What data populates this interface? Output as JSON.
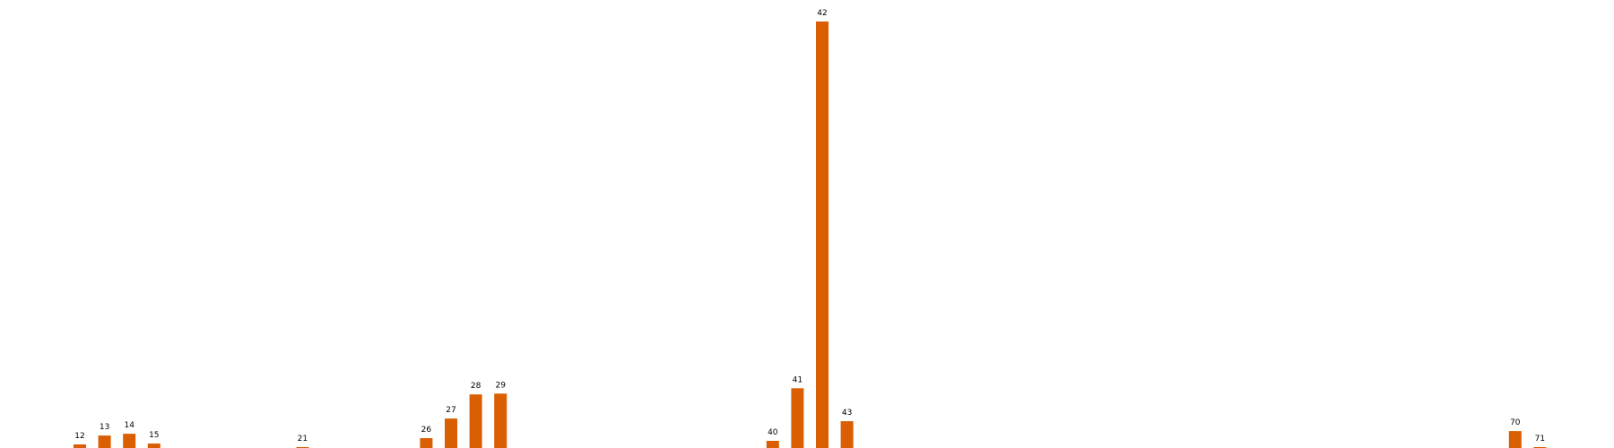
{
  "chart_data": {
    "type": "bar",
    "bar_color": "#d95f02",
    "background": "#ffffff",
    "grid": false,
    "axes_visible": false,
    "x_tick_labels": [],
    "ylim": [
      0,
      482
    ],
    "bars": [
      {
        "x": 12,
        "label": "12",
        "value": 4
      },
      {
        "x": 13,
        "label": "13",
        "value": 14
      },
      {
        "x": 14,
        "label": "14",
        "value": 16
      },
      {
        "x": 15,
        "label": "15",
        "value": 5
      },
      {
        "x": 21,
        "label": "21",
        "value": 1
      },
      {
        "x": 26,
        "label": "26",
        "value": 11
      },
      {
        "x": 27,
        "label": "27",
        "value": 33
      },
      {
        "x": 28,
        "label": "28",
        "value": 60
      },
      {
        "x": 29,
        "label": "29",
        "value": 61
      },
      {
        "x": 40,
        "label": "40",
        "value": 8
      },
      {
        "x": 41,
        "label": "41",
        "value": 67
      },
      {
        "x": 42,
        "label": "42",
        "value": 478
      },
      {
        "x": 43,
        "label": "43",
        "value": 30
      },
      {
        "x": 70,
        "label": "70",
        "value": 19
      },
      {
        "x": 71,
        "label": "71",
        "value": 1
      }
    ]
  }
}
